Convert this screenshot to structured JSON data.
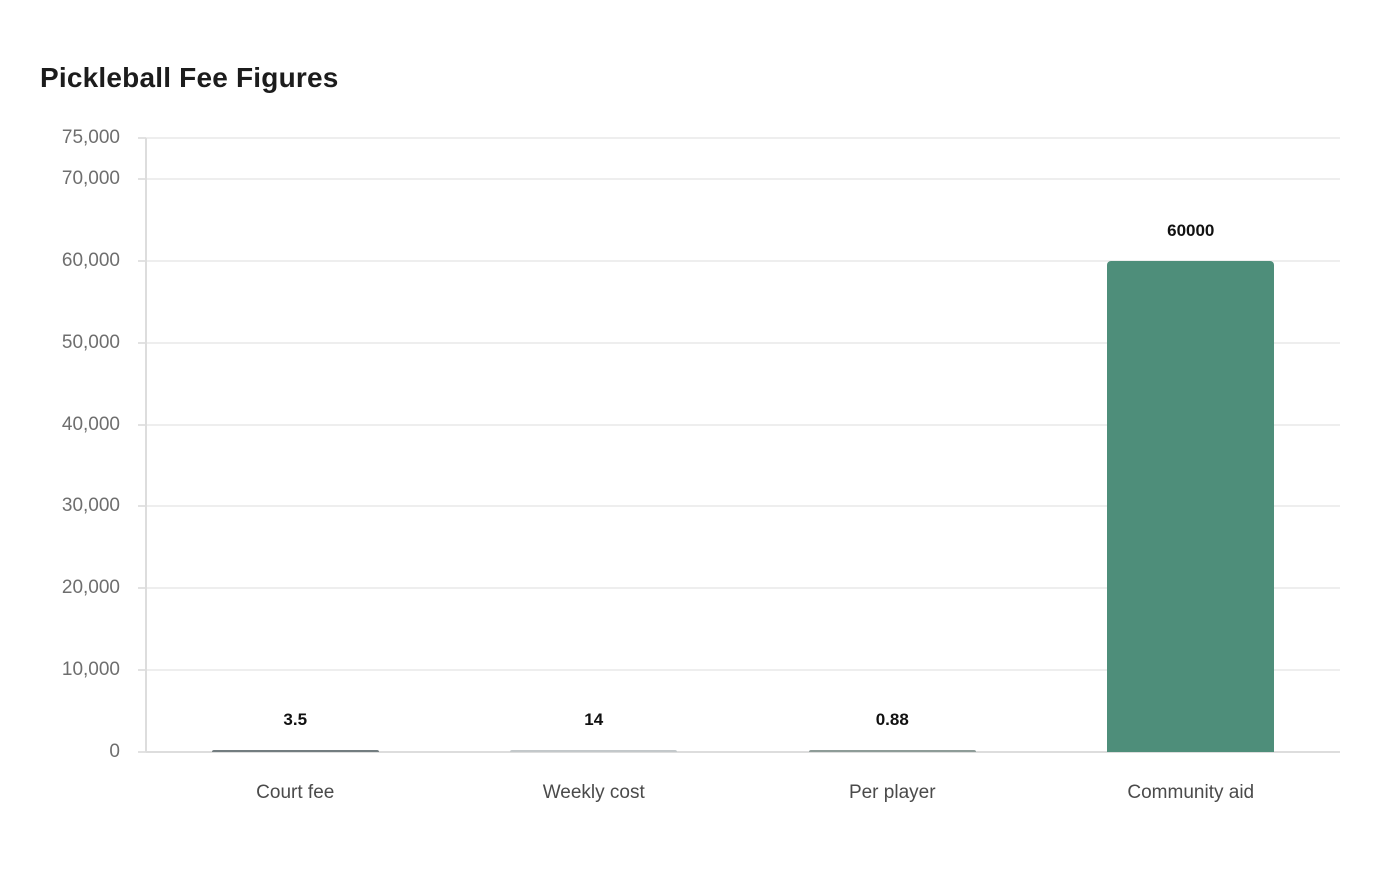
{
  "page": {
    "background": "#ffffff"
  },
  "header": {
    "title": "Pickleball Fee Figures"
  },
  "chart_data": {
    "type": "bar",
    "title": "Pickleball Fee Figures",
    "categories": [
      "Court fee",
      "Weekly cost",
      "Per player",
      "Community aid"
    ],
    "values": [
      3.5,
      14,
      0.88,
      60000
    ],
    "value_labels": [
      "3.5",
      "14",
      "0.88",
      "60000"
    ],
    "series_color": "#4e8e7a",
    "rendered_bar_colors": [
      "#737d80",
      "#c3c8ca",
      "#8e9c98",
      "#4e8e7a"
    ],
    "xlabel": "",
    "ylabel": "",
    "ylim": [
      0,
      75000
    ],
    "yticks": [
      0,
      10000,
      20000,
      30000,
      40000,
      50000,
      60000,
      70000,
      75000
    ],
    "ytick_labels": [
      "0",
      "10,000",
      "20,000",
      "30,000",
      "40,000",
      "50,000",
      "60,000",
      "70,000",
      "75,000"
    ],
    "grid": "horizontal",
    "legend": "none",
    "styles": {
      "title_color": "#1c1c1c",
      "tick_label_color": "#6e6e6e",
      "category_label_color": "#4a4a4a",
      "value_label_color": "#111111",
      "gridline_color": "#eeeeee",
      "axis_line_color": "#dddddd",
      "tick_mark_color": "#e2e2e2"
    }
  }
}
